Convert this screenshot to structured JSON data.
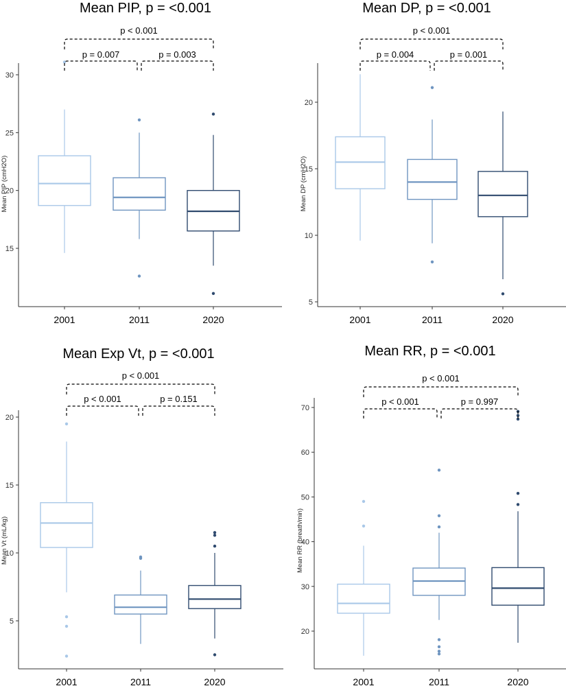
{
  "chart_data": [
    {
      "type": "box",
      "title": "Mean PIP, p = <0.001",
      "xlabel": "",
      "ylabel": "Mean PIP (cmH2O)",
      "categories": [
        "2001",
        "2011",
        "2020"
      ],
      "yticks": [
        15,
        20,
        25,
        30
      ],
      "ylim": [
        11.0,
        32.0
      ],
      "colors": [
        "#a9c8e8",
        "#6f95c0",
        "#2f4a6e"
      ],
      "boxes": [
        {
          "category": "2001",
          "whisker_low": 14.6,
          "q1": 18.7,
          "median": 20.6,
          "q3": 23.0,
          "whisker_high": 27.0,
          "outliers": [
            31.1
          ]
        },
        {
          "category": "2011",
          "whisker_low": 15.8,
          "q1": 18.3,
          "median": 19.4,
          "q3": 21.1,
          "whisker_high": 25.0,
          "outliers": [
            26.1,
            12.6
          ]
        },
        {
          "category": "2020",
          "whisker_low": 13.5,
          "q1": 16.5,
          "median": 18.2,
          "q3": 20.0,
          "whisker_high": 24.8,
          "outliers": [
            26.6,
            11.1
          ]
        }
      ],
      "comparisons": [
        {
          "from": "2001",
          "to": "2020",
          "label": "p < 0.001",
          "level": 2
        },
        {
          "from": "2001",
          "to": "2011",
          "label": "p = 0.007",
          "level": 1
        },
        {
          "from": "2011",
          "to": "2020",
          "label": "p = 0.003",
          "level": 1
        }
      ]
    },
    {
      "type": "box",
      "title": "Mean DP, p = <0.001",
      "xlabel": "",
      "ylabel": "Mean DP (cmH2O)",
      "categories": [
        "2001",
        "2011",
        "2020"
      ],
      "yticks": [
        5,
        10,
        15,
        20
      ],
      "ylim": [
        4.8,
        22.8
      ],
      "colors": [
        "#a9c8e8",
        "#6f95c0",
        "#2f4a6e"
      ],
      "boxes": [
        {
          "category": "2001",
          "whisker_low": 9.6,
          "q1": 13.5,
          "median": 15.5,
          "q3": 17.4,
          "whisker_high": 22.1,
          "outliers": []
        },
        {
          "category": "2011",
          "whisker_low": 9.4,
          "q1": 12.7,
          "median": 14.0,
          "q3": 15.7,
          "whisker_high": 18.7,
          "outliers": [
            21.1,
            8.0
          ]
        },
        {
          "category": "2020",
          "whisker_low": 6.7,
          "q1": 11.4,
          "median": 13.0,
          "q3": 14.8,
          "whisker_high": 19.3,
          "outliers": [
            5.6
          ]
        }
      ],
      "comparisons": [
        {
          "from": "2001",
          "to": "2020",
          "label": "p < 0.001",
          "level": 2
        },
        {
          "from": "2001",
          "to": "2011",
          "label": "p = 0.004",
          "level": 1
        },
        {
          "from": "2011",
          "to": "2020",
          "label": "p = 0.001",
          "level": 1
        }
      ]
    },
    {
      "type": "box",
      "title": "Mean Exp Vt, p = <0.001",
      "xlabel": "",
      "ylabel": "Mean Vt (mL/kg)",
      "categories": [
        "2001",
        "2011",
        "2020"
      ],
      "yticks": [
        5,
        10,
        15,
        20
      ],
      "ylim": [
        1.5,
        20.3
      ],
      "colors": [
        "#a9c8e8",
        "#6f95c0",
        "#2f4a6e"
      ],
      "boxes": [
        {
          "category": "2001",
          "whisker_low": 7.1,
          "q1": 10.4,
          "median": 12.2,
          "q3": 13.7,
          "whisker_high": 18.2,
          "outliers": [
            19.5,
            5.3,
            4.6,
            2.4
          ]
        },
        {
          "category": "2011",
          "whisker_low": 3.3,
          "q1": 5.5,
          "median": 6.0,
          "q3": 6.9,
          "whisker_high": 8.7,
          "outliers": [
            9.6,
            9.7
          ]
        },
        {
          "category": "2020",
          "whisker_low": 3.7,
          "q1": 5.9,
          "median": 6.6,
          "q3": 7.6,
          "whisker_high": 10.0,
          "outliers": [
            11.5,
            11.3,
            10.5,
            2.5
          ]
        }
      ],
      "comparisons": [
        {
          "from": "2001",
          "to": "2020",
          "label": "p < 0.001",
          "level": 2
        },
        {
          "from": "2001",
          "to": "2011",
          "label": "p < 0.001",
          "level": 1
        },
        {
          "from": "2011",
          "to": "2020",
          "label": "p = 0.151",
          "level": 1
        }
      ]
    },
    {
      "type": "box",
      "title": "Mean RR, p = <0.001",
      "xlabel": "",
      "ylabel": "Mean RR (breath/min)",
      "categories": [
        "2001",
        "2011",
        "2020"
      ],
      "yticks": [
        20,
        30,
        40,
        50,
        60,
        70
      ],
      "ylim": [
        12.3,
        71.0
      ],
      "colors": [
        "#a9c8e8",
        "#6f95c0",
        "#2f4a6e"
      ],
      "boxes": [
        {
          "category": "2001",
          "whisker_low": 14.5,
          "q1": 24.0,
          "median": 26.2,
          "q3": 30.5,
          "whisker_high": 39.1,
          "outliers": [
            49.0,
            43.5
          ]
        },
        {
          "category": "2011",
          "whisker_low": 22.5,
          "q1": 28.0,
          "median": 31.2,
          "q3": 34.1,
          "whisker_high": 42.0,
          "outliers": [
            56.0,
            45.8,
            43.3,
            18.1,
            16.5,
            15.5,
            14.9
          ]
        },
        {
          "category": "2020",
          "whisker_low": 17.4,
          "q1": 25.8,
          "median": 29.6,
          "q3": 34.2,
          "whisker_high": 46.8,
          "outliers": [
            69.1,
            68.2,
            67.4,
            50.8,
            48.3
          ]
        }
      ],
      "comparisons": [
        {
          "from": "2001",
          "to": "2020",
          "label": "p < 0.001",
          "level": 2
        },
        {
          "from": "2001",
          "to": "2011",
          "label": "p < 0.001",
          "level": 1
        },
        {
          "from": "2011",
          "to": "2020",
          "label": "p = 0.997",
          "level": 1
        }
      ]
    }
  ]
}
